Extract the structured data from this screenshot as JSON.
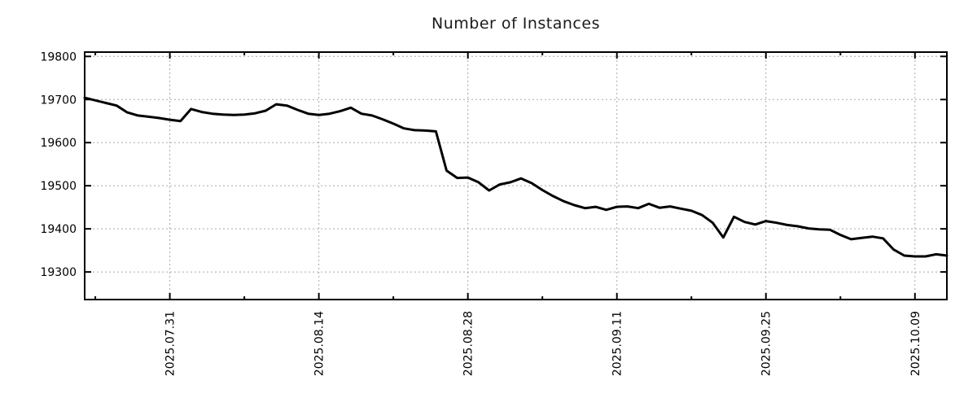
{
  "page": {
    "background": "#ffffff"
  },
  "chart_data": {
    "type": "line",
    "title": "Number of Instances",
    "series_name": "number-of-instances",
    "x": [
      "2025.07.23",
      "2025.07.24",
      "2025.07.25",
      "2025.07.26",
      "2025.07.27",
      "2025.07.28",
      "2025.07.29",
      "2025.07.30",
      "2025.07.31",
      "2025.08.01",
      "2025.08.02",
      "2025.08.03",
      "2025.08.04",
      "2025.08.05",
      "2025.08.06",
      "2025.08.07",
      "2025.08.08",
      "2025.08.09",
      "2025.08.10",
      "2025.08.11",
      "2025.08.12",
      "2025.08.13",
      "2025.08.14",
      "2025.08.15",
      "2025.08.16",
      "2025.08.17",
      "2025.08.18",
      "2025.08.19",
      "2025.08.20",
      "2025.08.21",
      "2025.08.22",
      "2025.08.23",
      "2025.08.24",
      "2025.08.25",
      "2025.08.26",
      "2025.08.27",
      "2025.08.28",
      "2025.08.29",
      "2025.08.30",
      "2025.08.31",
      "2025.09.01",
      "2025.09.02",
      "2025.09.03",
      "2025.09.04",
      "2025.09.05",
      "2025.09.06",
      "2025.09.07",
      "2025.09.08",
      "2025.09.09",
      "2025.09.10",
      "2025.09.11",
      "2025.09.12",
      "2025.09.13",
      "2025.09.14",
      "2025.09.15",
      "2025.09.16",
      "2025.09.17",
      "2025.09.18",
      "2025.09.19",
      "2025.09.20",
      "2025.09.21",
      "2025.09.22",
      "2025.09.23",
      "2025.09.24",
      "2025.09.25",
      "2025.09.26",
      "2025.09.27",
      "2025.09.28",
      "2025.09.29",
      "2025.09.30",
      "2025.10.01",
      "2025.10.02",
      "2025.10.03",
      "2025.10.04",
      "2025.10.05",
      "2025.10.06",
      "2025.10.07",
      "2025.10.08",
      "2025.10.09",
      "2025.10.10",
      "2025.10.11",
      "2025.10.12"
    ],
    "values": [
      19704,
      19698,
      19692,
      19686,
      19670,
      19663,
      19660,
      19657,
      19653,
      19650,
      19678,
      19671,
      19667,
      19665,
      19664,
      19665,
      19668,
      19674,
      19689,
      19686,
      19676,
      19667,
      19664,
      19667,
      19673,
      19681,
      19667,
      19663,
      19654,
      19644,
      19633,
      19629,
      19628,
      19626,
      19535,
      19518,
      19519,
      19508,
      19489,
      19503,
      19508,
      19517,
      19506,
      19490,
      19476,
      19464,
      19455,
      19448,
      19451,
      19444,
      19451,
      19452,
      19448,
      19458,
      19449,
      19452,
      19447,
      19442,
      19432,
      19414,
      19380,
      19428,
      19416,
      19410,
      19418,
      19414,
      19409,
      19406,
      19401,
      19399,
      19398,
      19386,
      19376,
      19379,
      19382,
      19378,
      19352,
      19338,
      19336,
      19336,
      19341,
      19338
    ],
    "ylim": [
      19236,
      19810
    ],
    "yticks": [
      19300,
      19400,
      19500,
      19600,
      19700,
      19800
    ],
    "xticks_major": {
      "indices": [
        8,
        22,
        36,
        50,
        64,
        78
      ],
      "labels": [
        "2025.07.31",
        "2025.08.14",
        "2025.08.28",
        "2025.09.11",
        "2025.09.25",
        "2025.10.09"
      ]
    },
    "xticks_minor_indices": [
      1,
      15,
      29,
      43,
      57,
      71
    ],
    "grid": true,
    "legend": "none",
    "line_color": "#000000",
    "grid_color": "#a8a8a8",
    "axis_color": "#000000",
    "text_color": "#000000"
  }
}
